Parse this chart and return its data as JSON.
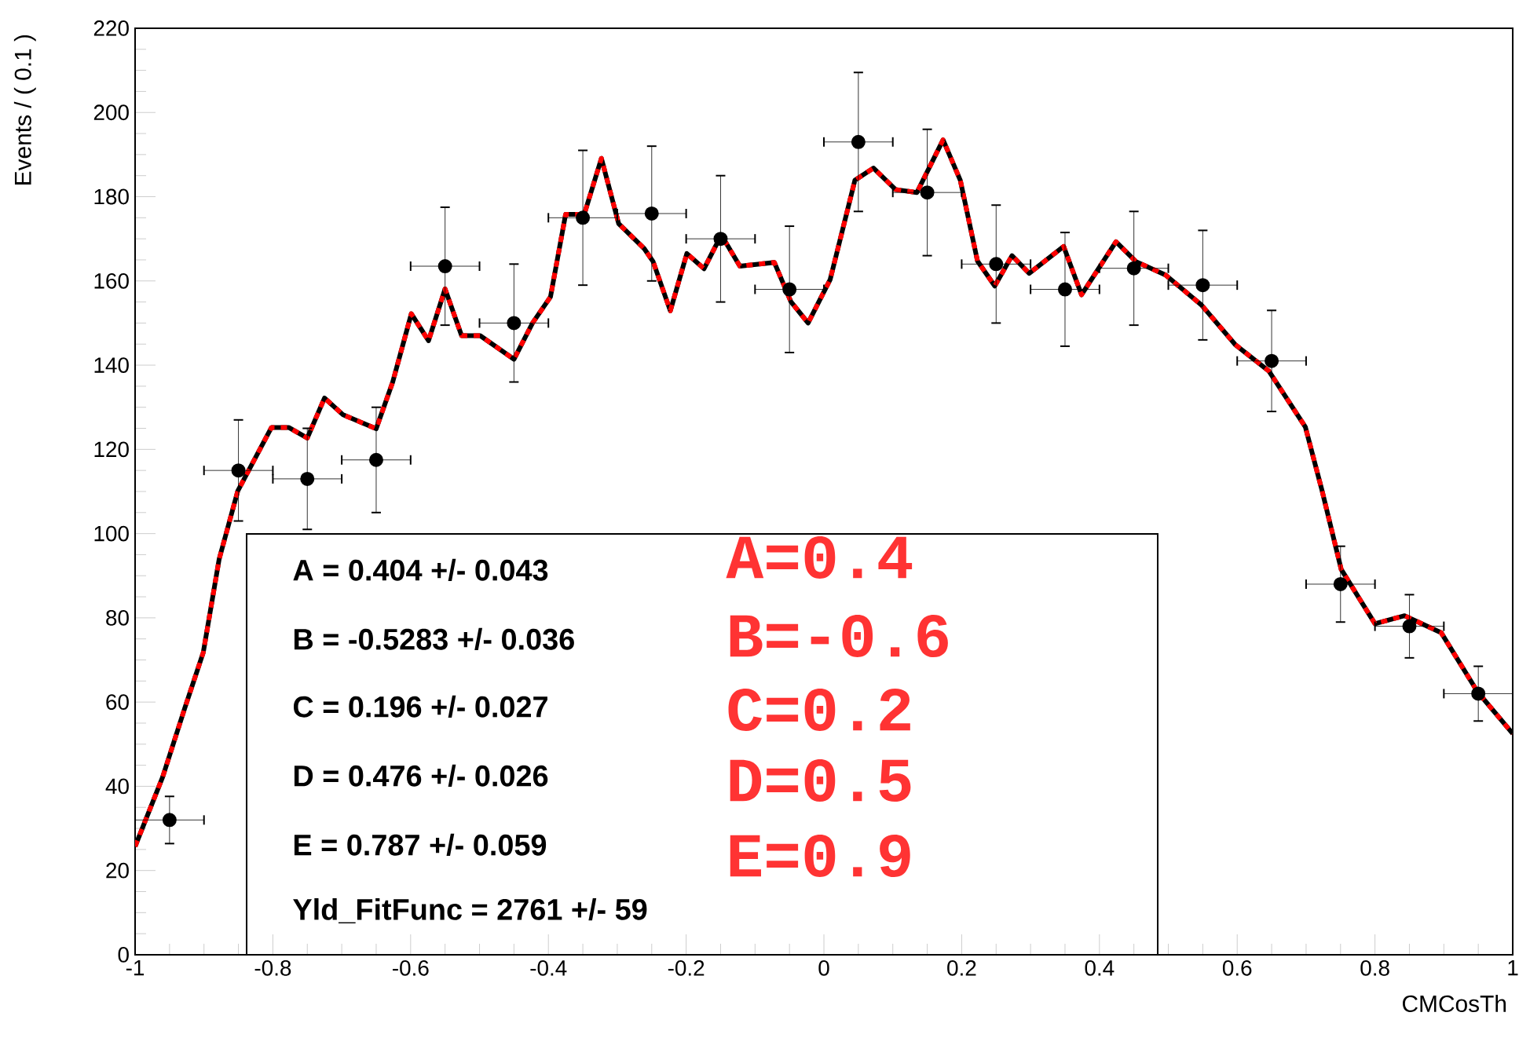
{
  "chart_data": {
    "type": "scatter",
    "xlabel": "CMCosTh",
    "ylabel": "Events / ( 0.1 )",
    "xlim": [
      -1,
      1
    ],
    "ylim": [
      0,
      220
    ],
    "xticks": [
      -1,
      -0.8,
      -0.6,
      -0.4,
      -0.2,
      0,
      0.2,
      0.4,
      0.6,
      0.8,
      1
    ],
    "yticks": [
      0,
      20,
      40,
      60,
      80,
      100,
      120,
      140,
      160,
      180,
      200,
      220
    ],
    "annotations": [
      "A =  0.404 +/- 0.043",
      "B = -0.5283 +/- 0.036",
      "C =  0.196 +/- 0.027",
      "D =  0.476 +/- 0.026",
      "E =  0.787 +/- 0.059",
      "Yld_FitFunc =  2761 +/- 59",
      "A=0.4",
      "B=-0.6",
      "C=0.2",
      "D=0.5",
      "E=0.9"
    ],
    "series": [
      {
        "type": "line",
        "color": "#ff0000",
        "line_style": "dashed",
        "marker": "none",
        "x": [
          -1.0,
          -0.96,
          -0.928,
          -0.901,
          -0.878,
          -0.851,
          -0.802,
          -0.777,
          -0.75,
          -0.725,
          -0.698,
          -0.65,
          -0.626,
          -0.599,
          -0.574,
          -0.55,
          -0.526,
          -0.499,
          -0.45,
          -0.423,
          -0.397,
          -0.375,
          -0.348,
          -0.323,
          -0.298,
          -0.261,
          -0.248,
          -0.223,
          -0.199,
          -0.174,
          -0.149,
          -0.122,
          -0.072,
          -0.048,
          -0.023,
          0.009,
          0.045,
          0.072,
          0.104,
          0.135,
          0.173,
          0.198,
          0.223,
          0.248,
          0.273,
          0.298,
          0.348,
          0.374,
          0.424,
          0.453,
          0.496,
          0.548,
          0.597,
          0.646,
          0.699,
          0.723,
          0.751,
          0.8,
          0.843,
          0.896,
          0.949,
          1.0
        ],
        "values": [
          25.7,
          42.2,
          58.5,
          71.8,
          93.9,
          110.1,
          125.2,
          125.2,
          122.7,
          132.2,
          128.2,
          124.9,
          136,
          152.2,
          145.8,
          158.1,
          147,
          147,
          141.4,
          150,
          156.2,
          175.8,
          175.8,
          189.1,
          173.6,
          167.7,
          164.6,
          152.9,
          166.5,
          162.9,
          170.9,
          163.5,
          164.4,
          155.1,
          150,
          160.3,
          183.9,
          186.8,
          181.7,
          181,
          193.5,
          183.9,
          164.7,
          158.8,
          166,
          161.8,
          168.2,
          156.7,
          169.3,
          164.6,
          161.4,
          154.3,
          144.9,
          138.6,
          125.3,
          110.3,
          91.5,
          78.6,
          80.5,
          76.5,
          62.4,
          52.5
        ]
      },
      {
        "color": "#000000",
        "marker": "circle",
        "x": [
          -0.95,
          -0.85,
          -0.75,
          -0.65,
          -0.55,
          -0.45,
          -0.35,
          -0.25,
          -0.15,
          -0.05,
          0.05,
          0.15,
          0.25,
          0.35,
          0.45,
          0.55,
          0.65,
          0.75,
          0.85,
          0.95
        ],
        "values": [
          32,
          115,
          113,
          117.5,
          163.5,
          150,
          175,
          176,
          170,
          158,
          193,
          181,
          164,
          158,
          163,
          159,
          141,
          88,
          78,
          62
        ],
        "errors": [
          5.6,
          12,
          12,
          12.5,
          14,
          14,
          16,
          16,
          15,
          15,
          16.5,
          15,
          14,
          13.5,
          13.5,
          13,
          12,
          9,
          7.5,
          6.5
        ],
        "xerrors": [
          0.05,
          0.05,
          0.05,
          0.05,
          0.05,
          0.05,
          0.05,
          0.05,
          0.05,
          0.05,
          0.05,
          0.05,
          0.05,
          0.05,
          0.05,
          0.05,
          0.05,
          0.05,
          0.05,
          0.05
        ]
      }
    ]
  }
}
